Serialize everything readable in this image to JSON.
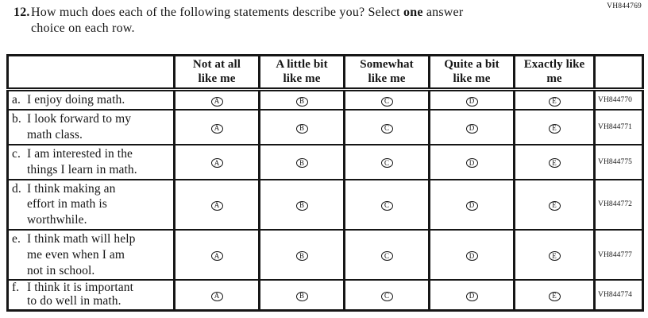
{
  "page": {
    "top_right_code": "VH844769",
    "colors": {
      "ink": "#161616",
      "background": "#ffffff"
    }
  },
  "question": {
    "number": "12.",
    "before": "How much does each of the following statements describe you? Select ",
    "bold": "one",
    "after": " answer\nchoice on each row."
  },
  "table": {
    "column_headers": [
      "Not at all\nlike me",
      "A little bit\nlike me",
      "Somewhat\nlike me",
      "Quite a bit\nlike me",
      "Exactly like\nme"
    ],
    "options": [
      "A",
      "B",
      "C",
      "D",
      "E"
    ],
    "rows": [
      {
        "label": "a.",
        "statement": "I enjoy doing math.",
        "code": "VH844770"
      },
      {
        "label": "b.",
        "statement": "I look forward to my\nmath class.",
        "code": "VH844771"
      },
      {
        "label": "c.",
        "statement": "I am interested in the\nthings I learn in math.",
        "code": "VH844775"
      },
      {
        "label": "d.",
        "statement": "I think making an\neffort in math is\nworthwhile.",
        "code": "VH844772"
      },
      {
        "label": "e.",
        "statement": "I think math will help\nme even when I am\nnot in school.",
        "code": "VH844777"
      },
      {
        "label": "f.",
        "statement": "I think it is important\nto do well in math.",
        "code": "VH844774"
      }
    ]
  }
}
